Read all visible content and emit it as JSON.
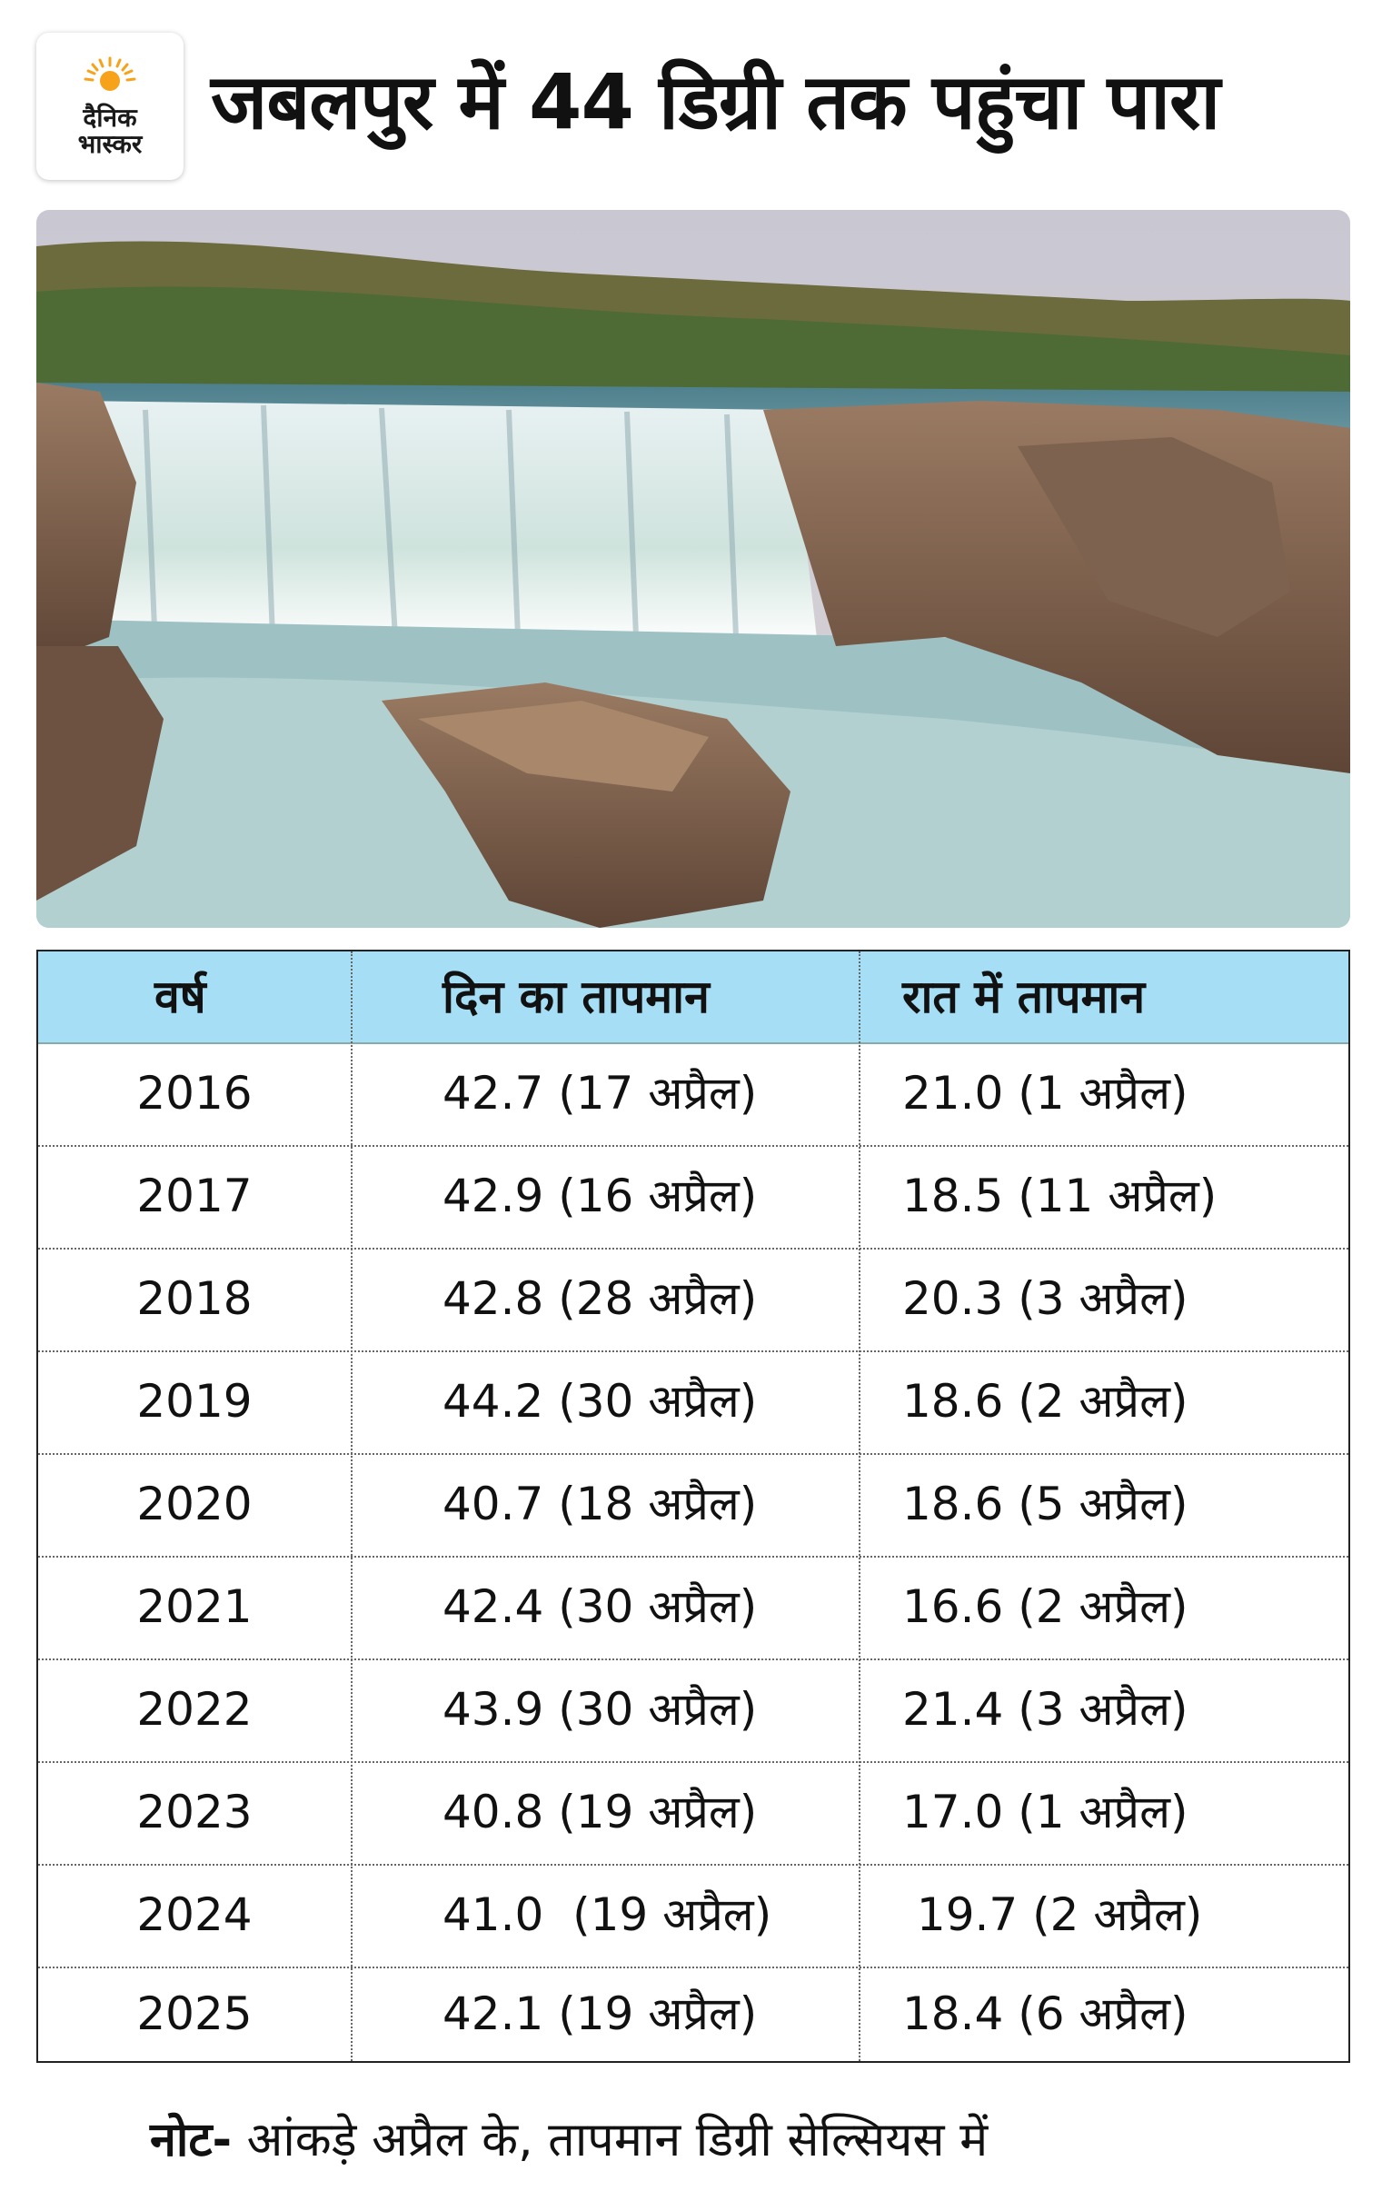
{
  "logo": {
    "line1": "दैनिक",
    "line2": "भास्कर",
    "icon": "sun-icon",
    "accent_color": "#f7a21b"
  },
  "title": "जबलपुर में 44 डिग्री तक पहुंचा पारा",
  "photo": {
    "subject": "waterfall"
  },
  "table": {
    "header_color": "#a6def5",
    "columns": [
      "वर्ष",
      "दिन का तापमान",
      "रात में तापमान"
    ],
    "rows": [
      {
        "year": "2016",
        "day": "42.7 (17 अप्रैल)",
        "night": "21.0 (1 अप्रैल)"
      },
      {
        "year": "2017",
        "day": "42.9 (16 अप्रैल)",
        "night": "18.5 (11 अप्रैल)"
      },
      {
        "year": "2018",
        "day": "42.8 (28 अप्रैल)",
        "night": "20.3 (3 अप्रैल)"
      },
      {
        "year": "2019",
        "day": "44.2 (30 अप्रैल)",
        "night": "18.6 (2 अप्रैल)"
      },
      {
        "year": "2020",
        "day": "40.7 (18 अप्रैल)",
        "night": "18.6 (5 अप्रैल)"
      },
      {
        "year": "2021",
        "day": "42.4 (30 अप्रैल)",
        "night": "16.6 (2 अप्रैल)"
      },
      {
        "year": "2022",
        "day": "43.9 (30 अप्रैल)",
        "night": "21.4 (3 अप्रैल)"
      },
      {
        "year": "2023",
        "day": "40.8 (19 अप्रैल)",
        "night": "17.0 (1 अप्रैल)"
      },
      {
        "year": "2024",
        "day": "41.0  (19 अप्रैल)",
        "night": " 19.7 (2 अप्रैल)"
      },
      {
        "year": "2025",
        "day": "42.1 (19 अप्रैल)",
        "night": "18.4 (6 अप्रैल)"
      }
    ]
  },
  "note": {
    "label": "नोट-",
    "text": " आंकड़े अप्रैल के, तापमान डिग्री सेल्सियस में"
  }
}
